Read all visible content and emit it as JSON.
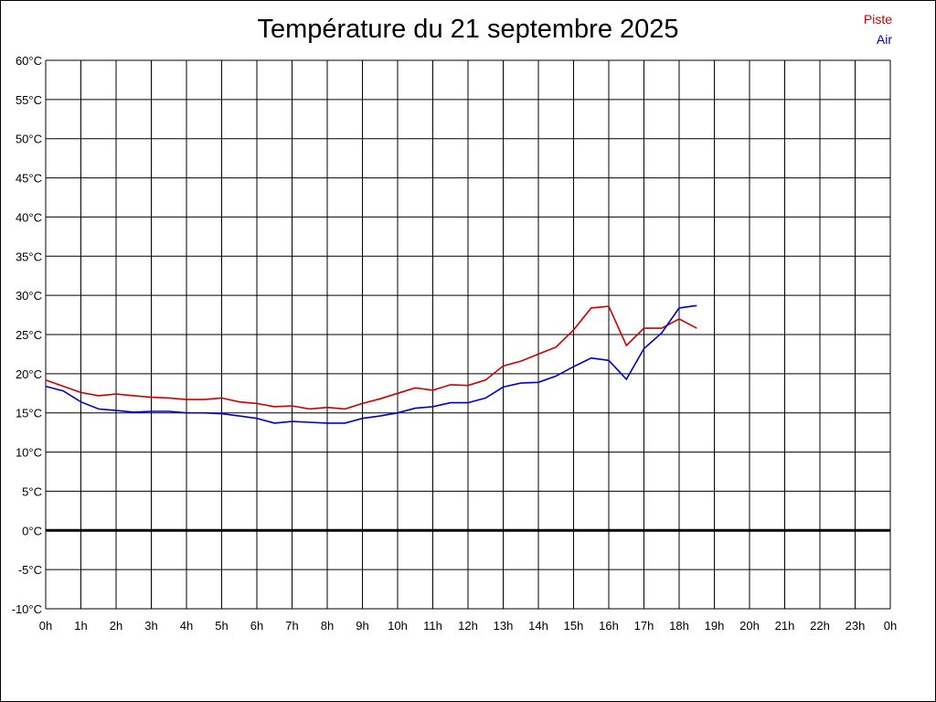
{
  "chart_data": {
    "type": "line",
    "title": "Température du 21 septembre 2025",
    "x_tick_labels": [
      "0h",
      "1h",
      "2h",
      "3h",
      "4h",
      "5h",
      "6h",
      "7h",
      "8h",
      "9h",
      "10h",
      "11h",
      "12h",
      "13h",
      "14h",
      "15h",
      "16h",
      "17h",
      "18h",
      "19h",
      "20h",
      "21h",
      "22h",
      "23h",
      "0h"
    ],
    "y_tick_labels": [
      "60°C",
      "55°C",
      "50°C",
      "45°C",
      "40°C",
      "35°C",
      "30°C",
      "25°C",
      "20°C",
      "15°C",
      "10°C",
      "5°C",
      "0°C",
      "-5°C",
      "-10°C"
    ],
    "xlim": [
      0,
      24
    ],
    "ylim": [
      -10,
      60
    ],
    "y_step": 5,
    "grid": true,
    "legend_position": "top-right",
    "series": [
      {
        "name": "Piste",
        "color": "#cc0000",
        "x": [
          0,
          0.5,
          1,
          1.5,
          2,
          2.5,
          3,
          3.5,
          4,
          4.5,
          5,
          5.5,
          6,
          6.5,
          7,
          7.5,
          8,
          8.5,
          9,
          9.5,
          10,
          10.5,
          11,
          11.5,
          12,
          12.5,
          13,
          13.5,
          14,
          14.5,
          15,
          15.5,
          16,
          16.5,
          17,
          17.5,
          18,
          18.5
        ],
        "values": [
          19.2,
          18.4,
          17.6,
          17.2,
          17.4,
          17.2,
          17.0,
          16.9,
          16.7,
          16.7,
          16.9,
          16.4,
          16.2,
          15.8,
          15.9,
          15.5,
          15.7,
          15.5,
          16.2,
          16.8,
          17.5,
          18.2,
          17.9,
          18.6,
          18.5,
          19.2,
          21.0,
          21.6,
          22.5,
          23.4,
          25.6,
          28.4,
          28.6,
          23.6,
          25.8,
          25.8,
          27.0,
          25.8
        ]
      },
      {
        "name": "Air",
        "color": "#0000cc",
        "x": [
          0,
          0.5,
          1,
          1.5,
          2,
          2.5,
          3,
          3.5,
          4,
          4.5,
          5,
          5.5,
          6,
          6.5,
          7,
          7.5,
          8,
          8.5,
          9,
          9.5,
          10,
          10.5,
          11,
          11.5,
          12,
          12.5,
          13,
          13.5,
          14,
          14.5,
          15,
          15.5,
          16,
          16.5,
          17,
          17.5,
          18,
          18.5
        ],
        "values": [
          18.4,
          17.8,
          16.4,
          15.5,
          15.3,
          15.1,
          15.2,
          15.2,
          15.0,
          15.0,
          14.9,
          14.6,
          14.3,
          13.7,
          13.9,
          13.8,
          13.7,
          13.7,
          14.3,
          14.6,
          15.0,
          15.6,
          15.8,
          16.3,
          16.3,
          16.9,
          18.3,
          18.8,
          18.9,
          19.7,
          20.9,
          22.0,
          21.7,
          19.3,
          23.2,
          25.2,
          28.4,
          28.7
        ]
      }
    ]
  }
}
